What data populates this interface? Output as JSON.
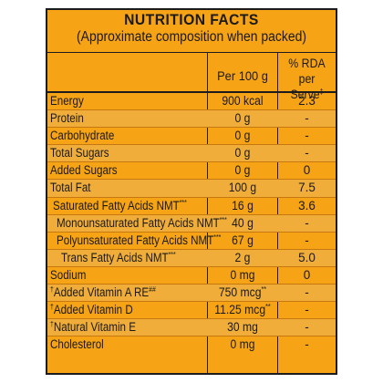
{
  "label": {
    "title": "NUTRITION FACTS",
    "subtitle": "(Approximate composition when packed)",
    "col_per100": "Per 100 g",
    "col_rda_line1": "% RDA",
    "col_rda_line2": "per Serve",
    "col_rda_mark": "‡"
  },
  "rows": [
    {
      "pre": "",
      "name": "Energy",
      "mark": "",
      "per100": "900 kcal",
      "p_mark": "",
      "rda": "2.3",
      "indent": 0
    },
    {
      "pre": "",
      "name": "Protein",
      "mark": "",
      "per100": "0 g",
      "p_mark": "",
      "rda": "-",
      "indent": 0
    },
    {
      "pre": "",
      "name": "Carbohydrate",
      "mark": "",
      "per100": "0 g",
      "p_mark": "",
      "rda": "-",
      "indent": 0
    },
    {
      "pre": "",
      "name": "Total Sugars",
      "mark": "",
      "per100": "0 g",
      "p_mark": "",
      "rda": "-",
      "indent": 0
    },
    {
      "pre": "",
      "name": "Added Sugars",
      "mark": "",
      "per100": "0 g",
      "p_mark": "",
      "rda": "0",
      "indent": 0
    },
    {
      "pre": "",
      "name": "Total Fat",
      "mark": "",
      "per100": "100 g",
      "p_mark": "",
      "rda": "7.5",
      "indent": 0
    },
    {
      "pre": "",
      "name": "Saturated Fatty Acids NMT",
      "mark": "***",
      "per100": "16 g",
      "p_mark": "",
      "rda": "3.6",
      "indent": 1
    },
    {
      "pre": "",
      "name": "Monounsaturated Fatty Acids NMT",
      "mark": "***",
      "per100": "40 g",
      "p_mark": "",
      "rda": "-",
      "indent": 2
    },
    {
      "pre": "",
      "name": "Polyunsaturated Fatty Acids NMT",
      "mark": "***",
      "per100": "67 g",
      "p_mark": "",
      "rda": "-",
      "indent": 2
    },
    {
      "pre": "",
      "name": "Trans Fatty Acids NMT",
      "mark": "***",
      "per100": "2 g",
      "p_mark": "",
      "rda": "5.0",
      "indent": 3
    },
    {
      "pre": "",
      "name": "Sodium",
      "mark": "",
      "per100": "0 mg",
      "p_mark": "",
      "rda": "0",
      "indent": 0
    },
    {
      "pre": "†",
      "name": "Added Vitamin A RE",
      "mark": "##",
      "per100": "750 mcg",
      "p_mark": "**",
      "rda": "-",
      "indent": 0
    },
    {
      "pre": "†",
      "name": "Added Vitamin D",
      "mark": "",
      "per100": "11.25 mcg",
      "p_mark": "**",
      "rda": "-",
      "indent": 0
    },
    {
      "pre": "†",
      "name": "Natural Vitamin E",
      "mark": "",
      "per100": "30 mg",
      "p_mark": "",
      "rda": "-",
      "indent": 0
    },
    {
      "pre": "",
      "name": "Cholesterol",
      "mark": "",
      "per100": "0 mg",
      "p_mark": "",
      "rda": "-",
      "indent": 0
    }
  ]
}
